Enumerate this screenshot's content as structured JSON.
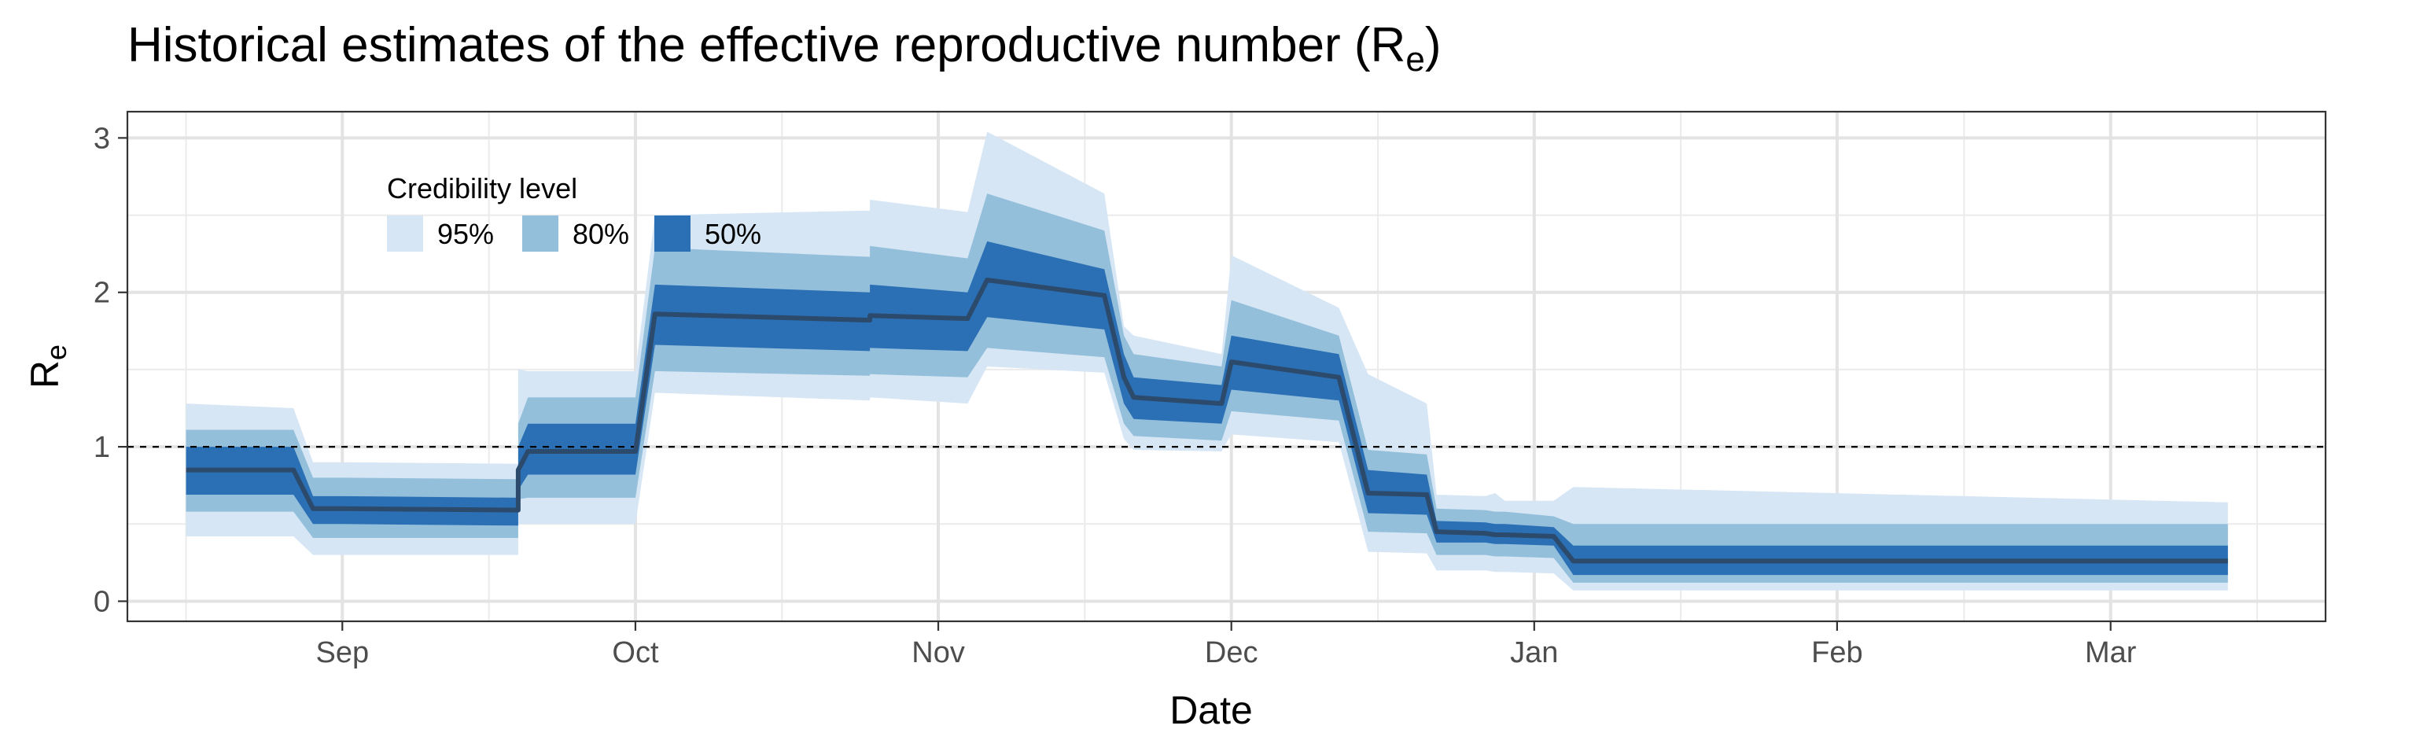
{
  "chart_data": {
    "type": "area",
    "title": "Historical estimates of the effective reproductive number (R",
    "title_subscript": "e",
    "title_suffix": ")",
    "xlabel": "Date",
    "ylabel": "R",
    "ylabel_subscript": "e",
    "xlim": [
      "2020-08-10",
      "2021-03-23"
    ],
    "ylim": [
      -0.13,
      3.17
    ],
    "yticks": [
      0,
      1,
      2,
      3
    ],
    "xticks": [
      {
        "label": "Sep",
        "date": "2020-09-01"
      },
      {
        "label": "Oct",
        "date": "2020-10-01"
      },
      {
        "label": "Nov",
        "date": "2020-11-01"
      },
      {
        "label": "Dec",
        "date": "2020-12-01"
      },
      {
        "label": "Jan",
        "date": "2021-01-01"
      },
      {
        "label": "Feb",
        "date": "2021-02-01"
      },
      {
        "label": "Mar",
        "date": "2021-03-01"
      }
    ],
    "minor_xticks": [
      "2020-08-16",
      "2020-09-16",
      "2020-10-16",
      "2020-11-16",
      "2020-12-16",
      "2021-01-16",
      "2021-02-14",
      "2021-03-16"
    ],
    "reference_line": {
      "y": 1,
      "style": "dashed"
    },
    "grid": true,
    "legend": {
      "title": "Credibility level",
      "position": "top-left inside",
      "entries": [
        {
          "label": "95%",
          "color": "#d6e6f5"
        },
        {
          "label": "80%",
          "color": "#93bfdb"
        },
        {
          "label": "50%",
          "color": "#2b6fb5"
        }
      ]
    },
    "median_color": "#2c4a6b",
    "x": [
      "2020-08-16",
      "2020-08-27",
      "2020-08-29",
      "2020-09-01",
      "2020-09-19",
      "2020-09-19",
      "2020-09-20",
      "2020-10-01",
      "2020-10-03",
      "2020-10-25",
      "2020-10-25",
      "2020-11-04",
      "2020-11-06",
      "2020-11-18",
      "2020-11-20",
      "2020-11-21",
      "2020-11-30",
      "2020-12-01",
      "2020-12-12",
      "2020-12-15",
      "2020-12-21",
      "2020-12-22",
      "2020-12-27",
      "2020-12-28",
      "2020-12-29",
      "2021-01-03",
      "2021-01-05",
      "2021-03-13"
    ],
    "median": [
      0.85,
      0.85,
      0.6,
      0.6,
      0.59,
      0.85,
      0.97,
      0.97,
      1.86,
      1.82,
      1.85,
      1.83,
      2.08,
      1.98,
      1.45,
      1.32,
      1.28,
      1.55,
      1.45,
      0.7,
      0.69,
      0.45,
      0.44,
      0.43,
      0.43,
      0.42,
      0.26,
      0.26
    ],
    "band_50": {
      "lower": [
        0.69,
        0.69,
        0.5,
        0.5,
        0.49,
        0.72,
        0.82,
        0.82,
        1.66,
        1.62,
        1.64,
        1.62,
        1.84,
        1.76,
        1.28,
        1.18,
        1.15,
        1.37,
        1.3,
        0.57,
        0.56,
        0.38,
        0.38,
        0.37,
        0.37,
        0.36,
        0.17,
        0.17
      ],
      "upper": [
        1.0,
        1.0,
        0.68,
        0.68,
        0.67,
        1.0,
        1.15,
        1.15,
        2.05,
        2.0,
        2.05,
        2.0,
        2.33,
        2.15,
        1.6,
        1.45,
        1.4,
        1.72,
        1.6,
        0.85,
        0.82,
        0.52,
        0.51,
        0.5,
        0.5,
        0.48,
        0.36,
        0.36
      ]
    },
    "band_80": {
      "lower": [
        0.58,
        0.58,
        0.41,
        0.41,
        0.41,
        0.66,
        0.67,
        0.67,
        1.49,
        1.46,
        1.47,
        1.45,
        1.64,
        1.58,
        1.15,
        1.07,
        1.04,
        1.23,
        1.17,
        0.45,
        0.44,
        0.3,
        0.3,
        0.29,
        0.29,
        0.28,
        0.12,
        0.12
      ],
      "upper": [
        1.11,
        1.11,
        0.8,
        0.8,
        0.79,
        1.15,
        1.32,
        1.32,
        2.29,
        2.23,
        2.3,
        2.22,
        2.64,
        2.4,
        1.72,
        1.6,
        1.52,
        1.95,
        1.72,
        0.98,
        0.95,
        0.6,
        0.59,
        0.58,
        0.58,
        0.55,
        0.5,
        0.5
      ]
    },
    "band_95": {
      "lower": [
        0.42,
        0.42,
        0.3,
        0.3,
        0.3,
        0.5,
        0.5,
        0.5,
        1.35,
        1.3,
        1.32,
        1.28,
        1.52,
        1.48,
        1.05,
        0.98,
        0.97,
        1.08,
        1.03,
        0.32,
        0.31,
        0.2,
        0.2,
        0.19,
        0.19,
        0.18,
        0.07,
        0.07
      ],
      "upper": [
        1.28,
        1.25,
        0.9,
        0.9,
        0.89,
        1.5,
        1.49,
        1.49,
        2.5,
        2.53,
        2.6,
        2.52,
        3.04,
        2.64,
        1.78,
        1.72,
        1.6,
        2.24,
        1.9,
        1.47,
        1.28,
        0.69,
        0.68,
        0.7,
        0.65,
        0.65,
        0.74,
        0.64
      ]
    }
  }
}
